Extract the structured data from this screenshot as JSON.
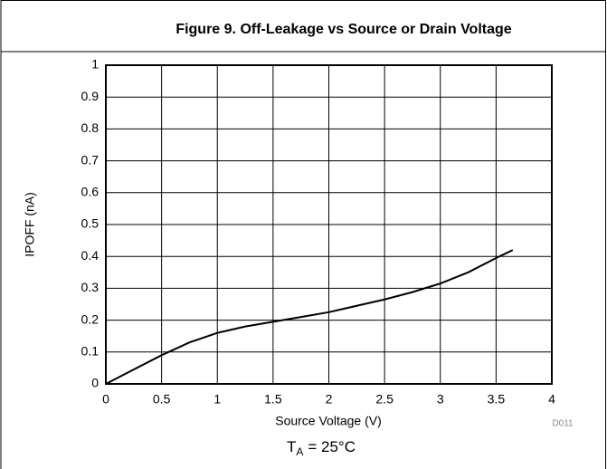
{
  "chart_data": {
    "type": "line",
    "title": "Figure 9. Off-Leakage vs Source or Drain Voltage",
    "xlabel": "Source Voltage (V)",
    "ylabel": "IPOFF (nA)",
    "code": "D011",
    "condition": {
      "symbol": "T",
      "subscript": "A",
      "text": "= 25°C"
    },
    "x": [
      0,
      0.25,
      0.5,
      0.75,
      1,
      1.25,
      1.5,
      1.75,
      2,
      2.25,
      2.5,
      2.75,
      3,
      3.25,
      3.5,
      3.65
    ],
    "series": [
      {
        "color": "#000000",
        "values": [
          0,
          0.045,
          0.09,
          0.13,
          0.16,
          0.18,
          0.195,
          0.21,
          0.225,
          0.245,
          0.265,
          0.288,
          0.315,
          0.35,
          0.395,
          0.42
        ]
      }
    ],
    "xlim": [
      0,
      4
    ],
    "xticks": [
      0,
      0.5,
      1,
      1.5,
      2,
      2.5,
      3,
      3.5,
      4
    ],
    "ylim": [
      0,
      1
    ],
    "yticks": [
      0,
      0.1,
      0.2,
      0.3,
      0.4,
      0.5,
      0.6,
      0.7,
      0.8,
      0.9,
      1
    ],
    "grid": true
  }
}
